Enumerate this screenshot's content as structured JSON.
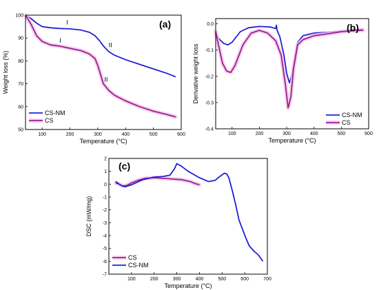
{
  "colors": {
    "cs_nm": "#1f1fd6",
    "cs": "#9b1f8a",
    "cs_glow": "#f3c6ee",
    "axis": "#000000"
  },
  "chart_data": [
    {
      "type": "line",
      "panel_label": "(a)",
      "xlabel": "Temperature (°C)",
      "ylabel": "Weight loss (%)",
      "xlim": [
        40,
        600
      ],
      "ylim": [
        50,
        100
      ],
      "xticks": [
        100,
        200,
        300,
        400,
        500,
        600
      ],
      "yticks": [
        50,
        60,
        70,
        80,
        90,
        100
      ],
      "legend_position": "bottom-left",
      "annotations": [
        {
          "text": "I",
          "x": 190,
          "y": 96
        },
        {
          "text": "II",
          "x": 345,
          "y": 86
        },
        {
          "text": "I",
          "x": 165,
          "y": 88
        },
        {
          "text": "II",
          "x": 330,
          "y": 71
        }
      ],
      "series": [
        {
          "name": "CS-NM",
          "color_key": "cs_nm",
          "x": [
            40,
            60,
            80,
            100,
            130,
            160,
            200,
            240,
            270,
            290,
            305,
            320,
            340,
            360,
            400,
            450,
            500,
            550,
            580
          ],
          "y": [
            100,
            98.5,
            96.5,
            95,
            94.5,
            94.2,
            94,
            93.5,
            92.5,
            91,
            89,
            86.5,
            84,
            82.5,
            80.5,
            78.5,
            76.5,
            74.5,
            73
          ]
        },
        {
          "name": "CS",
          "color_key": "cs",
          "x": [
            40,
            60,
            80,
            100,
            130,
            160,
            200,
            240,
            270,
            290,
            300,
            310,
            320,
            340,
            360,
            400,
            450,
            500,
            550,
            580
          ],
          "y": [
            100,
            96,
            91,
            88.5,
            87,
            86.5,
            85.5,
            84.5,
            83,
            81,
            78,
            74,
            70,
            67,
            65,
            62.5,
            60,
            58,
            56.5,
            55.5
          ]
        }
      ]
    },
    {
      "type": "line",
      "panel_label": "(b)",
      "xlabel": "Temperature (°C)",
      "ylabel": "Derivative weight loss",
      "xlim": [
        40,
        600
      ],
      "ylim": [
        -0.4,
        0.02
      ],
      "xticks": [
        100,
        200,
        300,
        400,
        500,
        600
      ],
      "yticks": [
        0.0,
        -0.1,
        -0.2,
        -0.3,
        -0.4
      ],
      "ytick_labels": [
        "0.0",
        "-0.1",
        "-0.2",
        "-0.3",
        "-0.4"
      ],
      "legend_position": "bottom-right",
      "series": [
        {
          "name": "CS-NM",
          "color_key": "cs_nm",
          "x": [
            40,
            55,
            70,
            85,
            100,
            130,
            160,
            200,
            240,
            260,
            262,
            265,
            275,
            290,
            300,
            310,
            320,
            340,
            360,
            400,
            450,
            500,
            550,
            580
          ],
          "y": [
            -0.04,
            -0.06,
            -0.075,
            -0.08,
            -0.07,
            -0.03,
            -0.015,
            -0.01,
            -0.012,
            -0.018,
            -0.005,
            -0.025,
            -0.05,
            -0.12,
            -0.19,
            -0.225,
            -0.19,
            -0.07,
            -0.045,
            -0.035,
            -0.032,
            -0.028,
            -0.022,
            -0.02
          ]
        },
        {
          "name": "CS",
          "color_key": "cs",
          "x": [
            40,
            50,
            65,
            80,
            95,
            110,
            140,
            170,
            200,
            230,
            260,
            280,
            295,
            305,
            315,
            325,
            340,
            360,
            400,
            450,
            500,
            550,
            580
          ],
          "y": [
            -0.03,
            -0.08,
            -0.15,
            -0.18,
            -0.185,
            -0.16,
            -0.08,
            -0.035,
            -0.025,
            -0.035,
            -0.065,
            -0.12,
            -0.23,
            -0.32,
            -0.28,
            -0.17,
            -0.08,
            -0.06,
            -0.045,
            -0.038,
            -0.03,
            -0.026,
            -0.024
          ]
        }
      ]
    },
    {
      "type": "line",
      "panel_label": "(c)",
      "xlabel": "Temperature (°C)",
      "ylabel": "DSC (mW/mg)",
      "xlim": [
        0,
        700
      ],
      "ylim": [
        -7,
        2
      ],
      "xticks": [
        100,
        200,
        300,
        400,
        500,
        600,
        700
      ],
      "yticks": [
        -7,
        -6,
        -5,
        -4,
        -3,
        -2,
        -1,
        0,
        1,
        2
      ],
      "legend_position": "bottom-left",
      "series": [
        {
          "name": "CS",
          "color_key": "cs",
          "x": [
            30,
            45,
            60,
            80,
            100,
            130,
            160,
            200,
            240,
            280,
            320,
            360,
            380,
            400
          ],
          "y": [
            0.1,
            0.0,
            -0.15,
            -0.1,
            0.1,
            0.3,
            0.45,
            0.5,
            0.45,
            0.4,
            0.35,
            0.2,
            0.05,
            -0.05
          ]
        },
        {
          "name": "CS-NM",
          "color_key": "cs_nm",
          "x": [
            30,
            50,
            70,
            100,
            150,
            200,
            240,
            270,
            290,
            300,
            320,
            350,
            400,
            440,
            470,
            490,
            510,
            520,
            530,
            545,
            560,
            575,
            590,
            605,
            620,
            640,
            660,
            680
          ],
          "y": [
            0.2,
            -0.05,
            -0.2,
            -0.05,
            0.35,
            0.55,
            0.6,
            0.7,
            1.2,
            1.6,
            1.4,
            1.0,
            0.5,
            0.2,
            0.3,
            0.6,
            0.85,
            0.8,
            0.5,
            -0.5,
            -1.6,
            -2.8,
            -3.5,
            -4.2,
            -4.8,
            -5.2,
            -5.5,
            -6.0
          ]
        }
      ]
    }
  ]
}
